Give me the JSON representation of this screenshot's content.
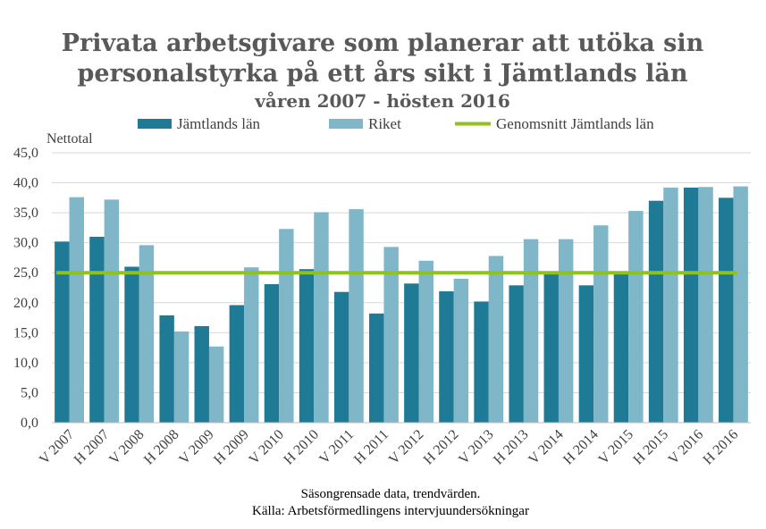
{
  "chart_data": {
    "type": "bar",
    "title_lines": [
      "Privata arbetsgivare som planerar att utöka sin",
      "personalstyrka på ett års sikt i Jämtlands län"
    ],
    "subtitle": "våren 2007 - hösten 2016",
    "ylabel": "Nettotal",
    "ylim": [
      0,
      45
    ],
    "yticks": [
      "0,0",
      "5,0",
      "10,0",
      "15,0",
      "20,0",
      "25,0",
      "30,0",
      "35,0",
      "40,0",
      "45,0"
    ],
    "grid": true,
    "legend_position": "top",
    "categories": [
      "V 2007",
      "H 2007",
      "V 2008",
      "H 2008",
      "V 2009",
      "H 2009",
      "V 2010",
      "H 2010",
      "V 2011",
      "H 2011",
      "V 2012",
      "H 2012",
      "V 2013",
      "H 2013",
      "V 2014",
      "H 2014",
      "V 2015",
      "H 2015",
      "V 2016",
      "H 2016"
    ],
    "series": [
      {
        "name": "Jämtlands län",
        "color": "#1f7a95",
        "values": [
          30.2,
          31.0,
          26.0,
          17.9,
          16.1,
          19.6,
          23.1,
          25.6,
          21.8,
          18.2,
          23.2,
          21.9,
          20.2,
          22.9,
          25.1,
          22.9,
          25.2,
          37.0,
          39.2,
          37.5
        ]
      },
      {
        "name": "Riket",
        "color": "#7fb6c8",
        "values": [
          37.6,
          37.2,
          29.6,
          15.2,
          12.7,
          25.9,
          32.3,
          35.1,
          35.6,
          29.3,
          27.0,
          24.0,
          27.8,
          30.6,
          30.6,
          32.9,
          35.3,
          39.2,
          39.3,
          39.4
        ]
      }
    ],
    "reference_line": {
      "name": "Genomsnitt Jämtlands län",
      "value": 25.0,
      "color": "#8dc21f"
    },
    "notes": [
      "Säsongrensade data, trendvärden.",
      "Källa: Arbetsförmedlingens intervjuundersökningar"
    ]
  }
}
